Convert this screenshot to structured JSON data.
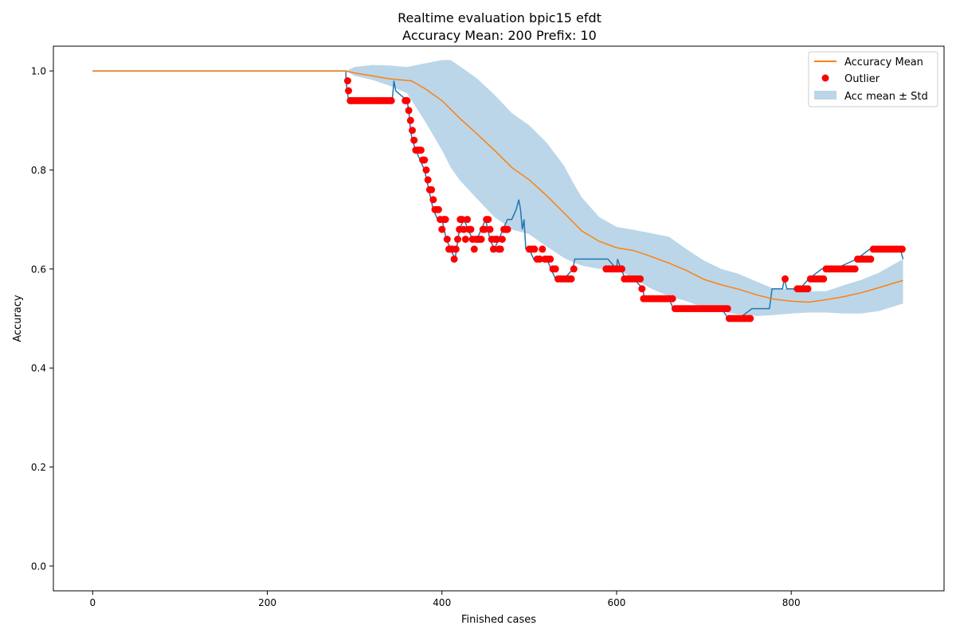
{
  "chart_data": {
    "type": "line",
    "title": "Realtime evaluation bpic15 efdt",
    "subtitle": "Accuracy Mean: 200 Prefix: 10",
    "xlabel": "Finished cases",
    "ylabel": "Accuracy",
    "xlim": [
      -45,
      975
    ],
    "ylim": [
      -0.05,
      1.05
    ],
    "xticks": [
      0,
      200,
      400,
      600,
      800
    ],
    "yticks": [
      0.0,
      0.2,
      0.4,
      0.6,
      0.8,
      1.0
    ],
    "xtick_labels": [
      "0",
      "200",
      "400",
      "600",
      "800"
    ],
    "ytick_labels": [
      "0.0",
      "0.2",
      "0.4",
      "0.6",
      "0.8",
      "1.0"
    ],
    "grid": false,
    "legend_position": "top-right",
    "legend": [
      "Accuracy Mean",
      "Outlier",
      "Acc mean ± Std"
    ],
    "colors": {
      "accuracy": "#1f77b4",
      "mean": "#ff7f0e",
      "outlier": "#ff0000",
      "band": "#1f77b4"
    },
    "accuracy_line": {
      "x": [
        0,
        290,
        290,
        293,
        300,
        343,
        345,
        347,
        360,
        362,
        364,
        366,
        370,
        375,
        380,
        385,
        390,
        395,
        400,
        405,
        410,
        415,
        420,
        425,
        430,
        435,
        440,
        445,
        450,
        455,
        460,
        465,
        470,
        475,
        480,
        485,
        488,
        490,
        492,
        494,
        496,
        500,
        505,
        510,
        520,
        525,
        530,
        540,
        550,
        552,
        590,
        600,
        601,
        605,
        610,
        620,
        630,
        632,
        640,
        660,
        665,
        680,
        700,
        720,
        728,
        740,
        755,
        775,
        778,
        790,
        792,
        795,
        805,
        810,
        820,
        835,
        850,
        875,
        890,
        910,
        925,
        928
      ],
      "y": [
        1.0,
        1.0,
        0.98,
        0.94,
        0.94,
        0.94,
        0.98,
        0.96,
        0.94,
        0.92,
        0.88,
        0.86,
        0.84,
        0.82,
        0.8,
        0.76,
        0.72,
        0.7,
        0.7,
        0.66,
        0.64,
        0.62,
        0.68,
        0.7,
        0.68,
        0.66,
        0.66,
        0.68,
        0.7,
        0.66,
        0.64,
        0.66,
        0.68,
        0.7,
        0.7,
        0.72,
        0.74,
        0.72,
        0.68,
        0.7,
        0.64,
        0.64,
        0.62,
        0.62,
        0.62,
        0.6,
        0.58,
        0.58,
        0.6,
        0.62,
        0.62,
        0.6,
        0.62,
        0.6,
        0.58,
        0.58,
        0.56,
        0.54,
        0.54,
        0.54,
        0.52,
        0.52,
        0.52,
        0.52,
        0.5,
        0.5,
        0.52,
        0.52,
        0.56,
        0.56,
        0.58,
        0.56,
        0.56,
        0.56,
        0.58,
        0.6,
        0.6,
        0.62,
        0.64,
        0.64,
        0.64,
        0.62
      ]
    },
    "mean_line": {
      "name": "Accuracy Mean",
      "x": [
        0,
        290,
        300,
        320,
        340,
        365,
        380,
        400,
        420,
        440,
        460,
        480,
        500,
        520,
        540,
        560,
        580,
        600,
        620,
        640,
        660,
        680,
        700,
        720,
        740,
        760,
        780,
        800,
        820,
        840,
        860,
        880,
        900,
        928
      ],
      "y": [
        1.0,
        1.0,
        0.996,
        0.99,
        0.984,
        0.98,
        0.965,
        0.94,
        0.905,
        0.873,
        0.84,
        0.805,
        0.78,
        0.748,
        0.713,
        0.677,
        0.656,
        0.643,
        0.637,
        0.625,
        0.612,
        0.597,
        0.579,
        0.568,
        0.559,
        0.548,
        0.539,
        0.535,
        0.533,
        0.538,
        0.544,
        0.552,
        0.562,
        0.577
      ]
    },
    "std_band": {
      "name": "Acc mean ± Std",
      "x": [
        290,
        300,
        320,
        340,
        360,
        380,
        400,
        410,
        420,
        440,
        460,
        480,
        500,
        520,
        540,
        550,
        560,
        580,
        600,
        620,
        640,
        660,
        680,
        700,
        720,
        740,
        760,
        780,
        800,
        820,
        840,
        860,
        880,
        900,
        928
      ],
      "upper": [
        1.0,
        1.008,
        1.012,
        1.011,
        1.008,
        1.015,
        1.022,
        1.022,
        1.01,
        0.985,
        0.952,
        0.915,
        0.89,
        0.855,
        0.808,
        0.775,
        0.745,
        0.705,
        0.685,
        0.679,
        0.672,
        0.665,
        0.64,
        0.617,
        0.6,
        0.59,
        0.575,
        0.56,
        0.56,
        0.555,
        0.555,
        0.567,
        0.578,
        0.592,
        0.62
      ],
      "lower": [
        1.0,
        0.99,
        0.982,
        0.97,
        0.955,
        0.9,
        0.84,
        0.805,
        0.78,
        0.742,
        0.705,
        0.68,
        0.67,
        0.645,
        0.622,
        0.614,
        0.607,
        0.6,
        0.6,
        0.58,
        0.56,
        0.545,
        0.535,
        0.522,
        0.515,
        0.508,
        0.505,
        0.507,
        0.51,
        0.512,
        0.512,
        0.51,
        0.51,
        0.515,
        0.53
      ]
    },
    "outliers": {
      "name": "Outlier",
      "x": [
        292,
        293,
        295,
        297,
        300,
        303,
        306,
        309,
        312,
        315,
        318,
        321,
        324,
        327,
        330,
        333,
        336,
        339,
        342,
        358,
        360,
        362,
        364,
        366,
        368,
        370,
        372,
        374,
        376,
        378,
        380,
        382,
        384,
        386,
        388,
        390,
        392,
        394,
        396,
        398,
        400,
        402,
        404,
        406,
        408,
        410,
        412,
        414,
        416,
        418,
        420,
        421,
        423,
        425,
        427,
        429,
        431,
        433,
        435,
        437,
        439,
        441,
        443,
        445,
        447,
        449,
        451,
        453,
        455,
        457,
        459,
        461,
        463,
        465,
        467,
        469,
        471,
        473,
        475,
        500,
        503,
        506,
        509,
        512,
        515,
        518,
        521,
        524,
        527,
        530,
        533,
        536,
        539,
        542,
        545,
        548,
        551,
        588,
        591,
        594,
        597,
        600,
        603,
        606,
        609,
        612,
        615,
        618,
        621,
        624,
        627,
        629,
        631,
        634,
        637,
        640,
        643,
        646,
        649,
        652,
        655,
        658,
        661,
        664,
        667,
        670,
        673,
        676,
        679,
        682,
        685,
        688,
        691,
        694,
        697,
        700,
        703,
        706,
        709,
        712,
        715,
        718,
        721,
        724,
        727,
        729,
        732,
        735,
        738,
        741,
        744,
        747,
        750,
        753,
        793,
        807,
        810,
        813,
        816,
        819,
        822,
        825,
        828,
        831,
        834,
        837,
        840,
        843,
        846,
        849,
        852,
        855,
        858,
        861,
        864,
        867,
        870,
        873,
        876,
        879,
        882,
        885,
        888,
        891,
        894,
        897,
        900,
        903,
        906,
        909,
        912,
        915,
        918,
        921,
        924,
        927
      ],
      "y": [
        0.98,
        0.96,
        0.94,
        0.94,
        0.94,
        0.94,
        0.94,
        0.94,
        0.94,
        0.94,
        0.94,
        0.94,
        0.94,
        0.94,
        0.94,
        0.94,
        0.94,
        0.94,
        0.94,
        0.94,
        0.94,
        0.92,
        0.9,
        0.88,
        0.86,
        0.84,
        0.84,
        0.84,
        0.84,
        0.82,
        0.82,
        0.8,
        0.78,
        0.76,
        0.76,
        0.74,
        0.72,
        0.72,
        0.72,
        0.7,
        0.68,
        0.7,
        0.7,
        0.66,
        0.64,
        0.64,
        0.64,
        0.62,
        0.64,
        0.66,
        0.68,
        0.7,
        0.7,
        0.68,
        0.66,
        0.7,
        0.68,
        0.68,
        0.66,
        0.64,
        0.66,
        0.66,
        0.66,
        0.66,
        0.68,
        0.68,
        0.7,
        0.7,
        0.68,
        0.66,
        0.64,
        0.66,
        0.66,
        0.64,
        0.64,
        0.66,
        0.68,
        0.68,
        0.68,
        0.64,
        0.64,
        0.64,
        0.62,
        0.62,
        0.64,
        0.62,
        0.62,
        0.62,
        0.6,
        0.6,
        0.58,
        0.58,
        0.58,
        0.58,
        0.58,
        0.58,
        0.6,
        0.6,
        0.6,
        0.6,
        0.6,
        0.6,
        0.6,
        0.6,
        0.58,
        0.58,
        0.58,
        0.58,
        0.58,
        0.58,
        0.58,
        0.56,
        0.54,
        0.54,
        0.54,
        0.54,
        0.54,
        0.54,
        0.54,
        0.54,
        0.54,
        0.54,
        0.54,
        0.54,
        0.52,
        0.52,
        0.52,
        0.52,
        0.52,
        0.52,
        0.52,
        0.52,
        0.52,
        0.52,
        0.52,
        0.52,
        0.52,
        0.52,
        0.52,
        0.52,
        0.52,
        0.52,
        0.52,
        0.52,
        0.52,
        0.5,
        0.5,
        0.5,
        0.5,
        0.5,
        0.5,
        0.5,
        0.5,
        0.5,
        0.58,
        0.56,
        0.56,
        0.56,
        0.56,
        0.56,
        0.58,
        0.58,
        0.58,
        0.58,
        0.58,
        0.58,
        0.6,
        0.6,
        0.6,
        0.6,
        0.6,
        0.6,
        0.6,
        0.6,
        0.6,
        0.6,
        0.6,
        0.6,
        0.62,
        0.62,
        0.62,
        0.62,
        0.62,
        0.62,
        0.64,
        0.64,
        0.64,
        0.64,
        0.64,
        0.64,
        0.64,
        0.64,
        0.64,
        0.64,
        0.64,
        0.64
      ]
    }
  }
}
